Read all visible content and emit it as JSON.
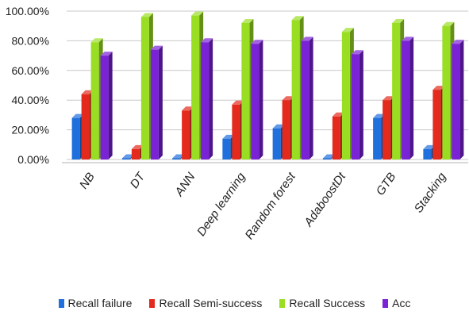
{
  "chart_data": {
    "type": "bar",
    "categories": [
      "NB",
      "DT",
      "ANN",
      "Deep learning",
      "Random forest",
      "AdaboostDt",
      "GTB",
      "Stacking"
    ],
    "series": [
      {
        "name": "Recall failure",
        "color": "#1f6fdc",
        "values": [
          28,
          0,
          0,
          14,
          21,
          0,
          28,
          7
        ]
      },
      {
        "name": "Recall Semi-success",
        "color": "#e42a1c",
        "values": [
          44,
          7,
          33,
          37,
          40,
          29,
          40,
          47
        ]
      },
      {
        "name": "Recall Success",
        "color": "#9ade23",
        "values": [
          79,
          96,
          97,
          92,
          94,
          86,
          92,
          90
        ]
      },
      {
        "name": "Acc",
        "color": "#7a22d6",
        "values": [
          70,
          74,
          79,
          78,
          80,
          71,
          80,
          78
        ]
      }
    ],
    "y_ticks": [
      "0.00%",
      "20.00%",
      "40.00%",
      "60.00%",
      "80.00%",
      "100.00%"
    ],
    "ylim": [
      0,
      100
    ],
    "grid": true,
    "legend_position": "bottom"
  }
}
